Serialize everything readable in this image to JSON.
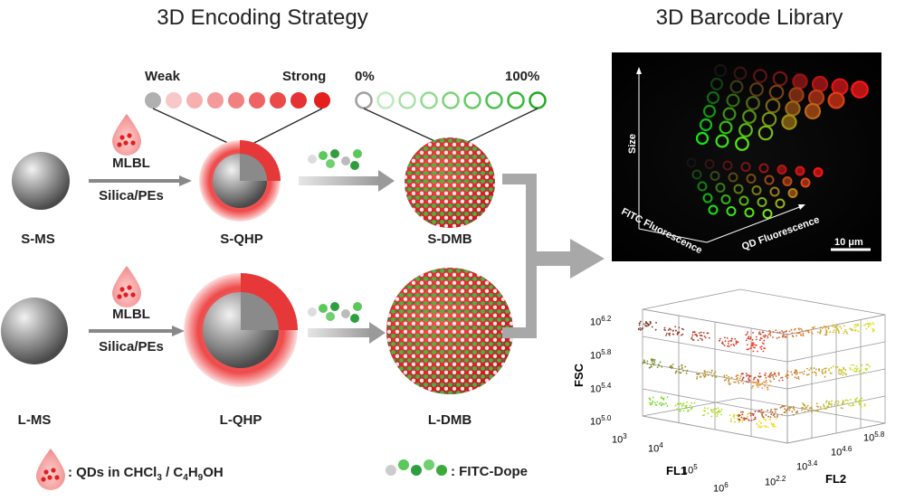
{
  "left_title": "3D Encoding Strategy",
  "right_title": "3D Barcode Library",
  "scale": {
    "weak": "Weak",
    "strong": "Strong",
    "zero": "0%",
    "hundred": "100%",
    "qd_color": "#e8242c",
    "fitc_color": "#22aa22"
  },
  "top_row": {
    "ms": "S-MS",
    "process_line1": "MLBL",
    "process_line2": "Silica/PEs",
    "qhp": "S-QHP",
    "dmb": "S-DMB"
  },
  "bottom_row": {
    "ms": "L-MS",
    "process_line1": "MLBL",
    "process_line2": "Silica/PEs",
    "qhp": "L-QHP",
    "dmb": "L-DMB"
  },
  "legend": {
    "qd_prefix": ": QDs in CHCl",
    "qd_sub1": "3",
    "qd_mid": " / C",
    "qd_sub2": "4",
    "qd_h": "H",
    "qd_sub3": "9",
    "qd_suffix": "OH",
    "fitc": ": FITC-Dope"
  },
  "micrograph": {
    "y_axis": "Size",
    "x_axis": "QD Fluorescence",
    "z_axis": "FITC Fluorescence",
    "scale_bar": "10 μm"
  },
  "scatter": {
    "z_label": "FSC",
    "x_label": "FL1",
    "y_label": "FL2",
    "z_ticks": [
      {
        "base": "10",
        "exp": "6.2"
      },
      {
        "base": "10",
        "exp": "5.8"
      },
      {
        "base": "10",
        "exp": "5.4"
      },
      {
        "base": "10",
        "exp": "5.0"
      }
    ],
    "x_ticks": [
      {
        "base": "10",
        "exp": "3"
      },
      {
        "base": "10",
        "exp": "4"
      },
      {
        "base": "10",
        "exp": "5"
      },
      {
        "base": "10",
        "exp": "6"
      }
    ],
    "y_ticks": [
      {
        "base": "10",
        "exp": "2.2"
      },
      {
        "base": "10",
        "exp": "3.4"
      },
      {
        "base": "10",
        "exp": "4.6"
      },
      {
        "base": "10",
        "exp": "5.8"
      }
    ]
  }
}
